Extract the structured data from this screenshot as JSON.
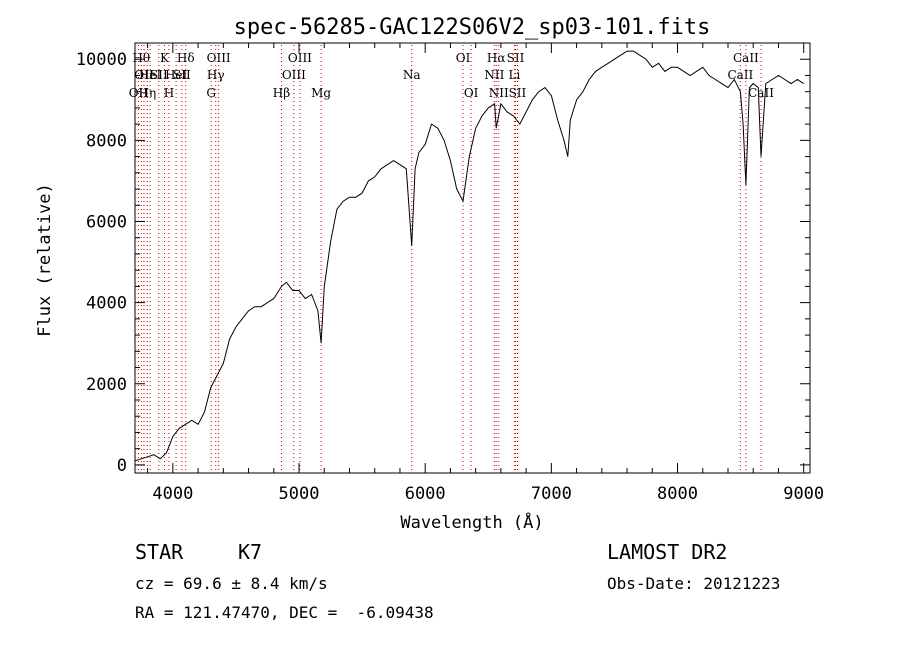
{
  "chart_data": {
    "type": "line",
    "title": "spec-56285-GAC122S06V2_sp03-101.fits",
    "xlabel": "Wavelength (Å)",
    "ylabel": "Flux (relative)",
    "xlim": [
      3700,
      9050
    ],
    "ylim": [
      -200,
      10400
    ],
    "xticks": [
      4000,
      5000,
      6000,
      7000,
      8000,
      9000
    ],
    "yticks": [
      0,
      2000,
      4000,
      6000,
      8000,
      10000
    ],
    "grid": false,
    "line_color": "#000000",
    "marker_color": "#cc0000",
    "series": [
      {
        "x": [
          3700,
          3750,
          3800,
          3850,
          3900,
          3950,
          4000,
          4050,
          4100,
          4150,
          4200,
          4250,
          4300,
          4350,
          4400,
          4450,
          4500,
          4550,
          4600,
          4650,
          4700,
          4750,
          4800,
          4861,
          4900,
          4950,
          5000,
          5050,
          5100,
          5150,
          5175,
          5200,
          5250,
          5300,
          5350,
          5400,
          5450,
          5500,
          5550,
          5600,
          5650,
          5700,
          5750,
          5800,
          5850,
          5893,
          5920,
          5950,
          6000,
          6050,
          6100,
          6150,
          6200,
          6250,
          6300,
          6350,
          6400,
          6450,
          6500,
          6550,
          6563,
          6600,
          6650,
          6700,
          6750,
          6800,
          6850,
          6900,
          6950,
          7000,
          7050,
          7100,
          7130,
          7150,
          7200,
          7250,
          7300,
          7350,
          7400,
          7450,
          7500,
          7550,
          7600,
          7650,
          7700,
          7750,
          7800,
          7850,
          7900,
          7950,
          8000,
          8050,
          8100,
          8150,
          8200,
          8250,
          8300,
          8350,
          8400,
          8450,
          8498,
          8520,
          8542,
          8570,
          8600,
          8640,
          8662,
          8700,
          8750,
          8800,
          8850,
          8900,
          8950,
          9000
        ],
        "y": [
          100,
          150,
          200,
          250,
          150,
          300,
          700,
          900,
          1000,
          1100,
          1000,
          1300,
          1900,
          2200,
          2500,
          3100,
          3400,
          3600,
          3800,
          3900,
          3900,
          4000,
          4100,
          4400,
          4500,
          4300,
          4300,
          4100,
          4200,
          3800,
          3000,
          4400,
          5500,
          6300,
          6500,
          6600,
          6600,
          6700,
          7000,
          7100,
          7300,
          7400,
          7500,
          7400,
          7300,
          5400,
          7300,
          7700,
          7900,
          8400,
          8300,
          8000,
          7500,
          6800,
          6500,
          7600,
          8300,
          8600,
          8800,
          8900,
          8300,
          8900,
          8700,
          8600,
          8400,
          8700,
          9000,
          9200,
          9300,
          9100,
          8500,
          8000,
          7600,
          8500,
          9000,
          9200,
          9500,
          9700,
          9800,
          9900,
          10000,
          10100,
          10200,
          10200,
          10100,
          10000,
          9800,
          9900,
          9700,
          9800,
          9800,
          9700,
          9600,
          9700,
          9800,
          9600,
          9500,
          9400,
          9300,
          9500,
          9200,
          8400,
          6900,
          9300,
          9400,
          9300,
          7600,
          9400,
          9500,
          9600,
          9500,
          9400,
          9500,
          9400
        ]
      }
    ],
    "line_markers": [
      {
        "x": 3727,
        "label": "OII",
        "row": 2
      },
      {
        "x": 3750,
        "label": "Hθ",
        "row": 0
      },
      {
        "x": 3771,
        "label": "OII",
        "row": 1
      },
      {
        "x": 3798,
        "label": "Hη",
        "row": 2
      },
      {
        "x": 3820,
        "label": "HeI",
        "row": 1
      },
      {
        "x": 3889,
        "label": "SII",
        "row": 1
      },
      {
        "x": 3934,
        "label": "K",
        "row": 0
      },
      {
        "x": 3969,
        "label": "H",
        "row": 2
      },
      {
        "x": 4026,
        "label": "HeI",
        "row": 1
      },
      {
        "x": 4072,
        "label": "SII",
        "row": 1
      },
      {
        "x": 4102,
        "label": "Hδ",
        "row": 0
      },
      {
        "x": 4304,
        "label": "G",
        "row": 2
      },
      {
        "x": 4340,
        "label": "Hγ",
        "row": 1
      },
      {
        "x": 4363,
        "label": "OIII",
        "row": 0
      },
      {
        "x": 4861,
        "label": "Hβ",
        "row": 2
      },
      {
        "x": 4959,
        "label": "OIII",
        "row": 1
      },
      {
        "x": 5007,
        "label": "OIII",
        "row": 0
      },
      {
        "x": 5175,
        "label": "Mg",
        "row": 2
      },
      {
        "x": 5893,
        "label": "Na",
        "row": 1
      },
      {
        "x": 6300,
        "label": "OI",
        "row": 0
      },
      {
        "x": 6364,
        "label": "OI",
        "row": 2
      },
      {
        "x": 6548,
        "label": "NII",
        "row": 1
      },
      {
        "x": 6563,
        "label": "Hα",
        "row": 0
      },
      {
        "x": 6583,
        "label": "NII",
        "row": 2
      },
      {
        "x": 6707,
        "label": "Li",
        "row": 1
      },
      {
        "x": 6716,
        "label": "SII",
        "row": 0
      },
      {
        "x": 6731,
        "label": "SII",
        "row": 2
      },
      {
        "x": 8498,
        "label": "CaII",
        "row": 1
      },
      {
        "x": 8542,
        "label": "CaII",
        "row": 0
      },
      {
        "x": 8662,
        "label": "CaII",
        "row": 2
      }
    ]
  },
  "info": {
    "object_class": "STAR",
    "subclass": "K7",
    "survey": "LAMOST DR2",
    "redshift": "cz = 69.6 ± 8.4 km/s",
    "obs_date": "Obs-Date: 20121223",
    "coords": "RA = 121.47470, DEC =  -6.09438"
  }
}
